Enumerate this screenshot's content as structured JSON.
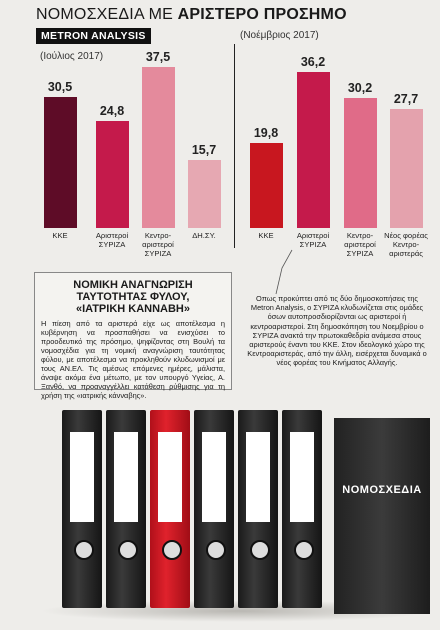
{
  "header": {
    "title_light": "ΝΟΜΟΣΧΕΔΙΑ ΜΕ",
    "title_bold": "ΑΡΙΣΤΕΡΟ ΠΡΟΣΗΜΟ",
    "source": "METRON ANALYSIS"
  },
  "chart_data": [
    {
      "type": "bar",
      "subtitle": "(Ιούλιος 2017)",
      "categories": [
        "ΚΚΕ",
        "Αριστεροί\nΣΥΡΙΖΑ",
        "Κεντρο-\nαριστεροί\nΣΥΡΙΖΑ",
        "ΔΗ.ΣΥ."
      ],
      "values": [
        30.5,
        24.8,
        37.5,
        15.7
      ],
      "value_labels": [
        "30,5",
        "24,8",
        "37,5",
        "15,7"
      ],
      "colors": [
        "#5e0c27",
        "#c41a4b",
        "#e48a9c",
        "#e6a8b2"
      ],
      "ylim": [
        0,
        40
      ]
    },
    {
      "type": "bar",
      "subtitle": "(Νοέμβριος 2017)",
      "categories": [
        "ΚΚΕ",
        "Αριστεροί\nΣΥΡΙΖΑ",
        "Κεντρο-\nαριστεροί\nΣΥΡΙΖΑ",
        "Νέος φορέας\nΚεντρο-\nαριστεράς"
      ],
      "values": [
        19.8,
        36.2,
        30.2,
        27.7
      ],
      "value_labels": [
        "19,8",
        "36,2",
        "30,2",
        "27,7"
      ],
      "colors": [
        "#c8171f",
        "#c41a4b",
        "#e06b88",
        "#e4a2ad"
      ],
      "ylim": [
        0,
        40
      ]
    }
  ],
  "sidebar": {
    "heading": "ΝΟΜΙΚΗ ΑΝΑΓΝΩΡΙΣΗ\nΤΑΥΤΟΤΗΤΑΣ ΦΥΛΟΥ,\n«ΙΑΤΡΙΚΗ ΚΑΝΝΑΒΗ»",
    "body": "Η πίεση από τα αριστερά είχε ως αποτέλεσμα η κυβέρνηση να προσπαθήσει να ενισχύσει το προοδευτικό της πρόσημο, ψηφίζοντας στη Βουλή τα νομοσχέδια για τη νομική αναγνώριση ταυτότητας φύλου, με αποτέλεσμα να προκληθούν κλυδωνισμοί με τους ΑΝ.ΕΛ. Τις αμέσως επόμενες ημέρες, μάλιστα, άναψε ακόμα ένα μέτωπο, με τον υπουργό Υγείας, Α. Ξανθό, να προαναγγέλλει κατάθεση ρύθμισης για τη χρήση της «ιατρικής κάνναβης»."
  },
  "note": {
    "body": "Οπως προκύπτει από τις δύο δημοσκοπήσεις της Metron Analysis, ο ΣΥΡΙΖΑ κλυδωνίζεται στις ομάδες όσων αυτοπροσδιορίζονται ως αριστεροί ή κεντροαριστεροί. Στη δημοσκόπηση του Νοεμβρίου ο ΣΥΡΙΖΑ ανακτά την πρωτοκαθεδρία ανάμεσα στους αριστερούς έναντι του ΚΚΕ. Στον ιδεολογικό χώρο της Κεντροαριστεράς, από την άλλη, εισέρχεται δυναμικά ο νέος φορέας του Κινήματος Αλλαγής."
  },
  "illustration": {
    "binder_label": "ΝΟΜΟΣΧΕΔΙΑ"
  }
}
